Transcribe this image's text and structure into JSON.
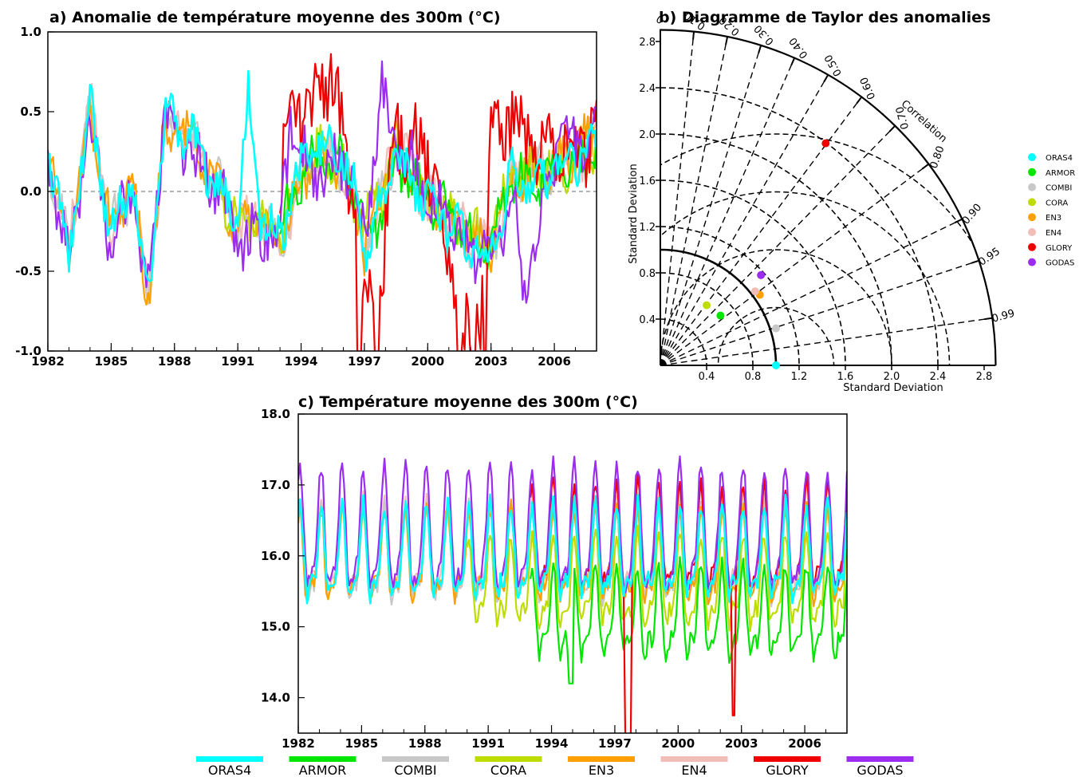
{
  "colors": {
    "ORAS4": "#00ffff",
    "ARMOR": "#00e600",
    "COMBI": "#c8c8c8",
    "CORA": "#bfdc00",
    "EN3": "#ffa000",
    "EN4": "#f2bdb7",
    "GLORY": "#f00000",
    "GODAS": "#9b2cf0"
  },
  "chart_data": [
    {
      "type": "line",
      "title": "a) Anomalie de température moyenne des 300m (°C)",
      "xlim": [
        1982,
        2008
      ],
      "ylim": [
        -1.0,
        1.0
      ],
      "yticks": [
        "1.0",
        "0.5",
        "0.0",
        "-0.5",
        "-1.0"
      ],
      "yticks_values": [
        1.0,
        0.5,
        0.0,
        -0.5,
        -1.0
      ],
      "xticks": [
        "1982",
        "1985",
        "1988",
        "1991",
        "1994",
        "1997",
        "2000",
        "2003",
        "2006"
      ],
      "xticks_values": [
        1982,
        1985,
        1988,
        1991,
        1994,
        1997,
        2000,
        2003,
        2006
      ],
      "zero_line": true,
      "series": [
        {
          "name": "ORAS4",
          "start": 1982,
          "x_knots": [
            1982,
            1983,
            1984,
            1985,
            1986,
            1986.7,
            1987.5,
            1988,
            1989,
            1990,
            1991,
            1991.5,
            1992,
            1993,
            1994,
            1995,
            1996,
            1996.5,
            1997,
            1997.8,
            1998.5,
            1999,
            2000,
            2001,
            2002,
            2003,
            2004,
            2005,
            2006,
            2007,
            2008
          ],
          "y_knots": [
            0.25,
            -0.4,
            0.55,
            -0.3,
            0.1,
            -0.7,
            0.4,
            0.45,
            0.3,
            0.05,
            -0.2,
            0.6,
            -0.1,
            -0.3,
            0.15,
            0.3,
            0.2,
            0.0,
            -0.35,
            -0.1,
            0.3,
            0.1,
            -0.05,
            -0.2,
            -0.35,
            -0.4,
            0.1,
            0.05,
            0.15,
            0.2,
            0.3
          ]
        },
        {
          "name": "ARMOR",
          "start": 1993,
          "x_knots": [
            1993,
            1994,
            1995,
            1996,
            1996.5,
            1997,
            1997.8,
            1998.5,
            1999,
            2000,
            2001,
            2002,
            2003,
            2004,
            2005,
            2006,
            2007,
            2008
          ],
          "y_knots": [
            -0.25,
            0.1,
            0.25,
            0.15,
            0.0,
            -0.25,
            -0.15,
            0.2,
            0.1,
            -0.05,
            -0.15,
            -0.3,
            -0.35,
            0.1,
            0.05,
            0.15,
            0.15,
            0.25
          ]
        },
        {
          "name": "COMBI",
          "start": 1982,
          "x_knots": [
            1982,
            1983,
            1984,
            1985,
            1986,
            1986.7,
            1987.5,
            1988,
            1989,
            1990,
            1991,
            1992,
            1993,
            1994,
            1995,
            1996,
            1997,
            1998.5,
            2000,
            2002,
            2003,
            2004,
            2006,
            2008
          ],
          "y_knots": [
            0.2,
            -0.35,
            0.5,
            -0.25,
            0.05,
            -0.65,
            0.35,
            0.4,
            0.3,
            0.05,
            -0.2,
            -0.15,
            -0.35,
            0.1,
            0.25,
            0.15,
            -0.3,
            0.25,
            -0.05,
            -0.3,
            -0.35,
            0.1,
            0.15,
            0.3
          ]
        },
        {
          "name": "CORA",
          "start": 1990,
          "x_knots": [
            1990,
            1991,
            1992,
            1993,
            1994,
            1995,
            1996,
            1997,
            1998.5,
            2000,
            2002,
            2003,
            2004,
            2006,
            2008
          ],
          "y_knots": [
            0.05,
            -0.2,
            -0.15,
            -0.3,
            0.1,
            0.25,
            0.15,
            -0.25,
            0.25,
            -0.05,
            -0.25,
            -0.3,
            0.1,
            0.15,
            0.25
          ]
        },
        {
          "name": "EN3",
          "start": 1982,
          "x_knots": [
            1982,
            1983,
            1984,
            1985,
            1986,
            1986.7,
            1987.5,
            1988,
            1989,
            1990,
            1991,
            1992,
            1993,
            1994,
            1995,
            1996,
            1997,
            1998.5,
            2000,
            2002,
            2003,
            2004,
            2006,
            2008
          ],
          "y_knots": [
            0.2,
            -0.35,
            0.5,
            -0.25,
            0.1,
            -0.75,
            0.35,
            0.4,
            0.3,
            0.05,
            -0.25,
            -0.15,
            -0.35,
            0.1,
            0.25,
            0.15,
            -0.35,
            0.3,
            -0.05,
            -0.3,
            -0.35,
            0.1,
            0.15,
            0.35
          ]
        },
        {
          "name": "EN4",
          "start": 1982,
          "x_knots": [
            1982,
            1983,
            1984,
            1985,
            1986,
            1986.7,
            1987.5,
            1988,
            1989,
            1990,
            1991,
            1992,
            1993,
            1994,
            1995,
            1996,
            1997,
            1998.5,
            2000,
            2002,
            2003,
            2004,
            2006,
            2008
          ],
          "y_knots": [
            0.2,
            -0.3,
            0.6,
            -0.25,
            0.1,
            -0.65,
            0.35,
            0.4,
            0.3,
            0.05,
            -0.2,
            -0.15,
            -0.35,
            0.1,
            0.25,
            0.2,
            -0.35,
            0.3,
            -0.05,
            -0.3,
            -0.35,
            0.1,
            0.15,
            0.3
          ]
        },
        {
          "name": "GLORY",
          "start": 1993,
          "x_knots": [
            1993,
            1993.5,
            1994,
            1995,
            1996,
            1996.5,
            1997,
            1997.7,
            1998.5,
            1999,
            2000,
            2001,
            2001.8,
            2002.5,
            2003,
            2004,
            2005,
            2006,
            2007,
            2008
          ],
          "y_knots": [
            -0.2,
            0.85,
            0.4,
            0.7,
            0.5,
            -0.2,
            -0.6,
            -0.8,
            0.45,
            0.3,
            0.2,
            -0.4,
            -0.9,
            -0.8,
            0.3,
            0.45,
            0.25,
            0.3,
            0.3,
            0.35
          ]
        },
        {
          "name": "GODAS",
          "start": 1982,
          "x_knots": [
            1982,
            1983,
            1984,
            1985,
            1986,
            1986.7,
            1987.5,
            1988,
            1989,
            1990,
            1991,
            1992,
            1993,
            1993.5,
            1994,
            1995,
            1996,
            1997,
            1997.8,
            1998.5,
            2000,
            2002,
            2003,
            2004,
            2004.6,
            2006,
            2008
          ],
          "y_knots": [
            0.25,
            -0.4,
            0.45,
            -0.35,
            0.05,
            -0.7,
            0.45,
            0.4,
            0.2,
            0.05,
            -0.3,
            -0.3,
            -0.25,
            0.45,
            0.2,
            0.1,
            0.2,
            -0.3,
            0.6,
            0.35,
            -0.05,
            -0.35,
            -0.4,
            0.0,
            -0.7,
            0.25,
            0.4
          ]
        }
      ]
    },
    {
      "type": "scatter",
      "title": "b) Diagramme de Taylor des anomalies",
      "xlabel": "Standard Deviation",
      "ylabel": "Standard Deviation",
      "arc_label": "Correlation",
      "sd_range": [
        0,
        2.9
      ],
      "sd_ticks": [
        "0.4",
        "0.8",
        "1.2",
        "1.6",
        "2.0",
        "2.4",
        "2.8"
      ],
      "sd_tick_values": [
        0.4,
        0.8,
        1.2,
        1.6,
        2.0,
        2.4,
        2.8
      ],
      "correlation_ticks": [
        "0",
        "0.10",
        "0.20",
        "0.30",
        "0.40",
        "0.50",
        "0.60",
        "0.70",
        "0.80",
        "0.90",
        "0.95",
        "0.99"
      ],
      "correlation_tick_values": [
        0,
        0.1,
        0.2,
        0.3,
        0.4,
        0.5,
        0.6,
        0.7,
        0.8,
        0.9,
        0.95,
        0.99
      ],
      "reference_std": 1.0,
      "centered_rms_circles": [
        0.5,
        1.0,
        1.5,
        2.0
      ],
      "points": [
        {
          "name": "ORAS4",
          "x": 1.0,
          "y": 0.0
        },
        {
          "name": "ARMOR",
          "x": 0.52,
          "y": 0.43
        },
        {
          "name": "COMBI",
          "x": 1.0,
          "y": 0.32
        },
        {
          "name": "CORA",
          "x": 0.4,
          "y": 0.52
        },
        {
          "name": "EN3",
          "x": 0.86,
          "y": 0.61
        },
        {
          "name": "EN4",
          "x": 0.82,
          "y": 0.64
        },
        {
          "name": "GLORY",
          "x": 1.43,
          "y": 1.92
        },
        {
          "name": "GODAS",
          "x": 0.87,
          "y": 0.78
        }
      ],
      "legend": [
        "ORAS4",
        "ARMOR",
        "COMBI",
        "CORA",
        "EN3",
        "EN4",
        "GLORY",
        "GODAS"
      ],
      "legend_placement": "right"
    },
    {
      "type": "line",
      "title": "c) Température moyenne des 300m (°C)",
      "xlim": [
        1982,
        2008
      ],
      "ylim": [
        13.5,
        18.0
      ],
      "yticks": [
        "18.0",
        "17.0",
        "16.0",
        "15.0",
        "14.0"
      ],
      "yticks_values": [
        18.0,
        17.0,
        16.0,
        15.0,
        14.0
      ],
      "xticks": [
        "1982",
        "1985",
        "1988",
        "1991",
        "1994",
        "1997",
        "2000",
        "2003",
        "2006"
      ],
      "xticks_values": [
        1982,
        1985,
        1988,
        1991,
        1994,
        1997,
        2000,
        2003,
        2006
      ],
      "seasonal_amplitude": 0.55,
      "series": [
        {
          "name": "ORAS4",
          "start": 1982,
          "mean": 15.95
        },
        {
          "name": "ARMOR",
          "start": 1993,
          "mean": 15.1
        },
        {
          "name": "COMBI",
          "start": 1982,
          "mean": 15.9
        },
        {
          "name": "CORA",
          "start": 1990,
          "mean": 15.55
        },
        {
          "name": "EN3",
          "start": 1982,
          "mean": 15.9
        },
        {
          "name": "EN4",
          "start": 1982,
          "mean": 16.0
        },
        {
          "name": "GLORY",
          "start": 1993,
          "mean": 16.15
        },
        {
          "name": "GODAS",
          "start": 1982,
          "mean": 16.25
        }
      ],
      "legend": [
        "ORAS4",
        "ARMOR",
        "COMBI",
        "CORA",
        "EN3",
        "EN4",
        "GLORY",
        "GODAS"
      ],
      "legend_placement": "bottom"
    }
  ]
}
